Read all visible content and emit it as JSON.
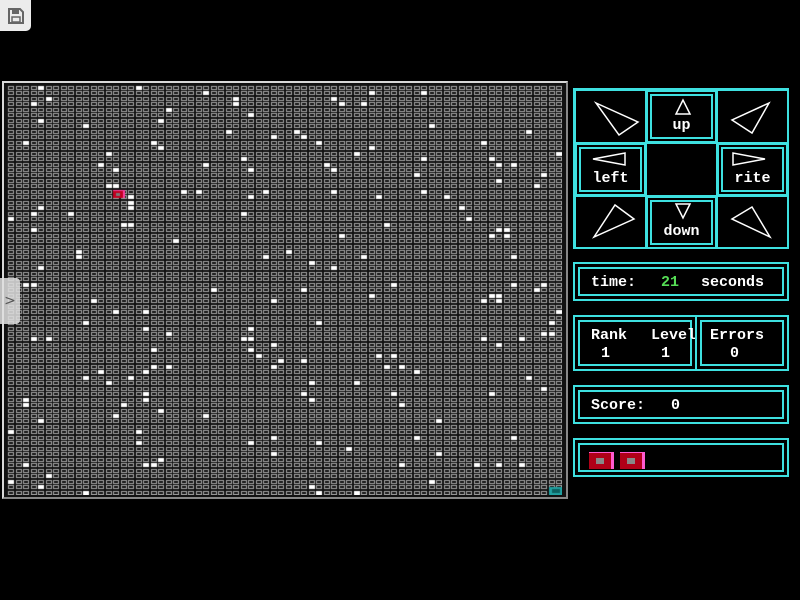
{
  "toolbar": {
    "save_icon": "floppy-disk-icon"
  },
  "sidebar_toggle": {
    "icon": "chevron-right-icon",
    "glyph": ">"
  },
  "maze": {
    "columns": 74,
    "rows": 75,
    "player": {
      "col": 14,
      "row": 19
    },
    "goal": {
      "col": 72,
      "row": 74
    },
    "colors": {
      "wall": "#a8a8a8",
      "marker": "#ffffff",
      "player": "#c00020",
      "goal": "#20a0a0"
    }
  },
  "dpad": {
    "up": "up",
    "left": "left",
    "rite": "rite",
    "down": "down"
  },
  "time": {
    "label": "time:",
    "value": "21",
    "unit": "seconds"
  },
  "rank": {
    "rank_label": "Rank",
    "level_label": "Level",
    "rank_value": "1",
    "level_value": "1",
    "errors_label": "Errors",
    "errors_value": "0"
  },
  "score": {
    "label": "Score:",
    "value": "0"
  },
  "lives": {
    "count": 2
  },
  "colors": {
    "accent": "#3ee0e0",
    "time_value": "#55dd55",
    "text": "#ffffff"
  }
}
